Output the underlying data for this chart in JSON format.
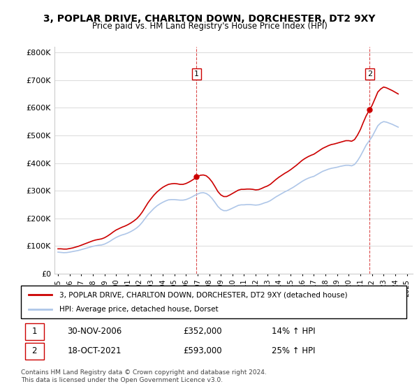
{
  "title": "3, POPLAR DRIVE, CHARLTON DOWN, DORCHESTER, DT2 9XY",
  "subtitle": "Price paid vs. HM Land Registry's House Price Index (HPI)",
  "legend_line1": "3, POPLAR DRIVE, CHARLTON DOWN, DORCHESTER, DT2 9XY (detached house)",
  "legend_line2": "HPI: Average price, detached house, Dorset",
  "transaction1_label": "1",
  "transaction1_date": "30-NOV-2006",
  "transaction1_price": "£352,000",
  "transaction1_hpi": "14% ↑ HPI",
  "transaction2_label": "2",
  "transaction2_date": "18-OCT-2021",
  "transaction2_price": "£593,000",
  "transaction2_hpi": "25% ↑ HPI",
  "footnote": "Contains HM Land Registry data © Crown copyright and database right 2024.\nThis data is licensed under the Open Government Licence v3.0.",
  "hpi_color": "#aec6e8",
  "price_color": "#cc0000",
  "marker_color": "#cc0000",
  "background_color": "#ffffff",
  "ylim": [
    0,
    820000
  ],
  "yticks": [
    0,
    100000,
    200000,
    300000,
    400000,
    500000,
    600000,
    700000,
    800000
  ],
  "xlim_start": 1995.0,
  "xlim_end": 2025.5,
  "hpi_data": {
    "years": [
      1995.0,
      1995.25,
      1995.5,
      1995.75,
      1996.0,
      1996.25,
      1996.5,
      1996.75,
      1997.0,
      1997.25,
      1997.5,
      1997.75,
      1998.0,
      1998.25,
      1998.5,
      1998.75,
      1999.0,
      1999.25,
      1999.5,
      1999.75,
      2000.0,
      2000.25,
      2000.5,
      2000.75,
      2001.0,
      2001.25,
      2001.5,
      2001.75,
      2002.0,
      2002.25,
      2002.5,
      2002.75,
      2003.0,
      2003.25,
      2003.5,
      2003.75,
      2004.0,
      2004.25,
      2004.5,
      2004.75,
      2005.0,
      2005.25,
      2005.5,
      2005.75,
      2006.0,
      2006.25,
      2006.5,
      2006.75,
      2007.0,
      2007.25,
      2007.5,
      2007.75,
      2008.0,
      2008.25,
      2008.5,
      2008.75,
      2009.0,
      2009.25,
      2009.5,
      2009.75,
      2010.0,
      2010.25,
      2010.5,
      2010.75,
      2011.0,
      2011.25,
      2011.5,
      2011.75,
      2012.0,
      2012.25,
      2012.5,
      2012.75,
      2013.0,
      2013.25,
      2013.5,
      2013.75,
      2014.0,
      2014.25,
      2014.5,
      2014.75,
      2015.0,
      2015.25,
      2015.5,
      2015.75,
      2016.0,
      2016.25,
      2016.5,
      2016.75,
      2017.0,
      2017.25,
      2017.5,
      2017.75,
      2018.0,
      2018.25,
      2018.5,
      2018.75,
      2019.0,
      2019.25,
      2019.5,
      2019.75,
      2020.0,
      2020.25,
      2020.5,
      2020.75,
      2021.0,
      2021.25,
      2021.5,
      2021.75,
      2022.0,
      2022.25,
      2022.5,
      2022.75,
      2023.0,
      2023.25,
      2023.5,
      2023.75,
      2024.0,
      2024.25
    ],
    "values": [
      78000,
      77000,
      76000,
      76500,
      78000,
      80000,
      82000,
      84000,
      87000,
      90000,
      93000,
      96000,
      99000,
      101000,
      103000,
      104000,
      107000,
      112000,
      118000,
      125000,
      131000,
      136000,
      140000,
      143000,
      147000,
      152000,
      158000,
      165000,
      174000,
      186000,
      200000,
      214000,
      225000,
      236000,
      245000,
      252000,
      258000,
      263000,
      267000,
      268000,
      268000,
      267000,
      266000,
      266000,
      268000,
      272000,
      277000,
      283000,
      288000,
      292000,
      293000,
      290000,
      283000,
      272000,
      258000,
      243000,
      233000,
      228000,
      228000,
      232000,
      237000,
      242000,
      247000,
      249000,
      249000,
      250000,
      250000,
      249000,
      248000,
      249000,
      252000,
      256000,
      259000,
      264000,
      271000,
      278000,
      284000,
      290000,
      296000,
      301000,
      307000,
      313000,
      320000,
      327000,
      334000,
      340000,
      345000,
      349000,
      352000,
      358000,
      364000,
      370000,
      374000,
      378000,
      381000,
      383000,
      385000,
      388000,
      390000,
      392000,
      392000,
      390000,
      395000,
      408000,
      425000,
      445000,
      465000,
      480000,
      495000,
      515000,
      535000,
      545000,
      550000,
      548000,
      544000,
      540000,
      535000,
      530000
    ]
  },
  "price_paid_data": {
    "years": [
      1995.0,
      1995.25,
      1995.5,
      1995.75,
      1996.0,
      1996.25,
      1996.5,
      1996.75,
      1997.0,
      1997.25,
      1997.5,
      1997.75,
      1998.0,
      1998.25,
      1998.5,
      1998.75,
      1999.0,
      1999.25,
      1999.5,
      1999.75,
      2000.0,
      2000.25,
      2000.5,
      2000.75,
      2001.0,
      2001.25,
      2001.5,
      2001.75,
      2002.0,
      2002.25,
      2002.5,
      2002.75,
      2003.0,
      2003.25,
      2003.5,
      2003.75,
      2004.0,
      2004.25,
      2004.5,
      2004.75,
      2005.0,
      2005.25,
      2005.5,
      2005.75,
      2006.0,
      2006.25,
      2006.5,
      2006.75,
      2007.0,
      2007.25,
      2007.5,
      2007.75,
      2008.0,
      2008.25,
      2008.5,
      2008.75,
      2009.0,
      2009.25,
      2009.5,
      2009.75,
      2010.0,
      2010.25,
      2010.5,
      2010.75,
      2011.0,
      2011.25,
      2011.5,
      2011.75,
      2012.0,
      2012.25,
      2012.5,
      2012.75,
      2013.0,
      2013.25,
      2013.5,
      2013.75,
      2014.0,
      2014.25,
      2014.5,
      2014.75,
      2015.0,
      2015.25,
      2015.5,
      2015.75,
      2016.0,
      2016.25,
      2016.5,
      2016.75,
      2017.0,
      2017.25,
      2017.5,
      2017.75,
      2018.0,
      2018.25,
      2018.5,
      2018.75,
      2019.0,
      2019.25,
      2019.5,
      2019.75,
      2020.0,
      2020.25,
      2020.5,
      2020.75,
      2021.0,
      2021.25,
      2021.5,
      2021.75,
      2022.0,
      2022.25,
      2022.5,
      2022.75,
      2023.0,
      2023.25,
      2023.5,
      2023.75,
      2024.0,
      2024.25
    ],
    "values": [
      90000,
      90000,
      89000,
      89000,
      91000,
      93000,
      96000,
      99000,
      103000,
      107000,
      111000,
      115000,
      119000,
      122000,
      124000,
      126000,
      130000,
      136000,
      143000,
      151000,
      158000,
      163000,
      168000,
      172000,
      177000,
      183000,
      190000,
      198000,
      209000,
      223000,
      240000,
      257000,
      271000,
      284000,
      295000,
      304000,
      312000,
      318000,
      323000,
      325000,
      326000,
      325000,
      323000,
      323000,
      326000,
      331000,
      337000,
      344000,
      351000,
      356000,
      357000,
      354000,
      345000,
      332000,
      315000,
      297000,
      285000,
      279000,
      279000,
      284000,
      290000,
      296000,
      302000,
      305000,
      305000,
      306000,
      306000,
      305000,
      303000,
      304000,
      308000,
      313000,
      317000,
      323000,
      332000,
      341000,
      349000,
      356000,
      363000,
      369000,
      376000,
      384000,
      392000,
      401000,
      410000,
      417000,
      423000,
      428000,
      432000,
      439000,
      446000,
      453000,
      458000,
      463000,
      467000,
      469000,
      472000,
      475000,
      478000,
      481000,
      481000,
      479000,
      485000,
      501000,
      521000,
      547000,
      571000,
      590000,
      608000,
      632000,
      657000,
      668000,
      675000,
      672000,
      667000,
      662000,
      656000,
      650000
    ]
  },
  "transaction1_year": 2006.917,
  "transaction2_year": 2021.792,
  "transaction1_price_val": 352000,
  "transaction2_price_val": 593000
}
